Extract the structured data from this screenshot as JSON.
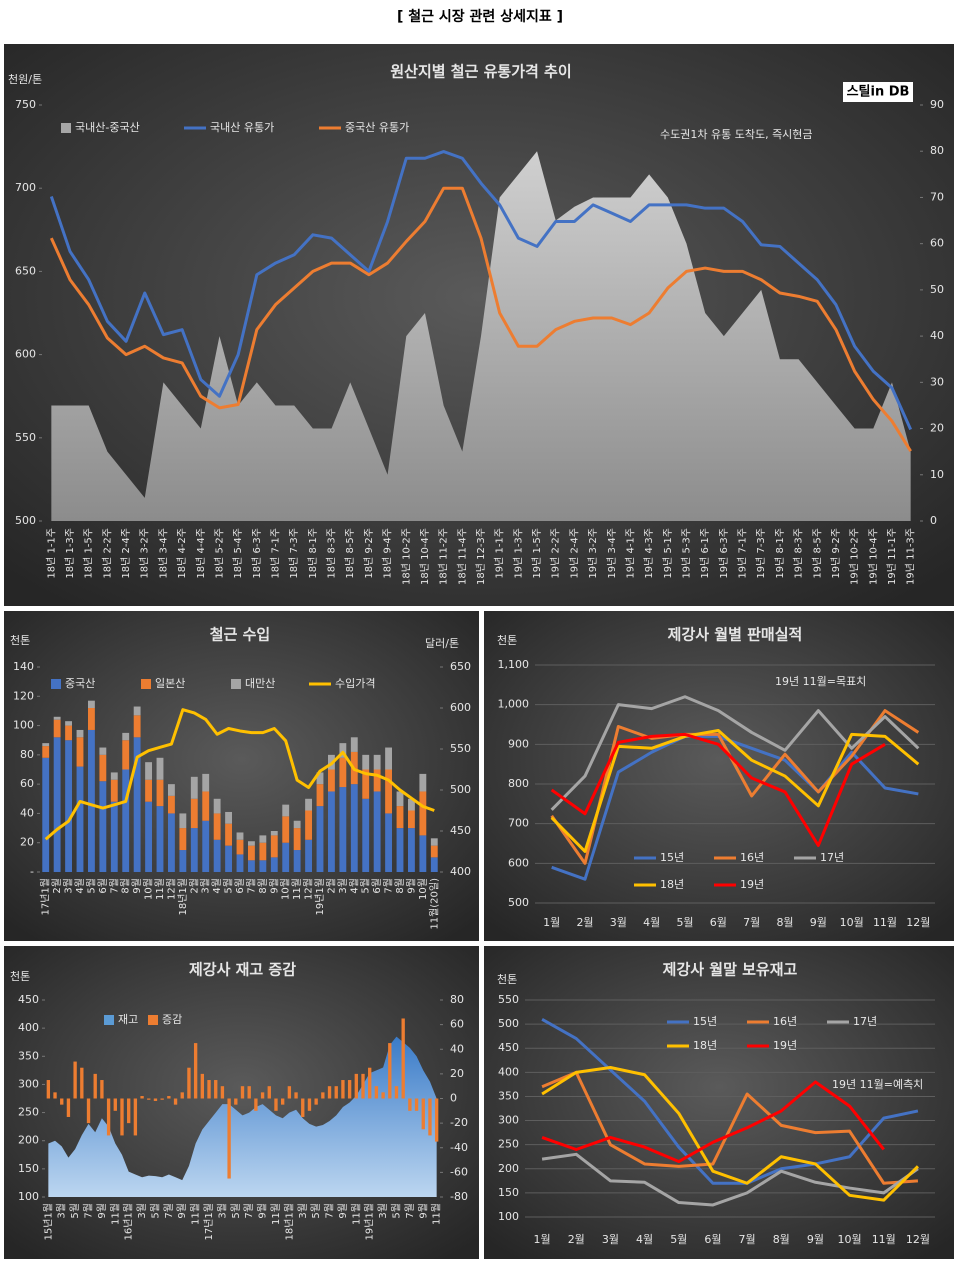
{
  "title": "[ 철근 시장 관련 상세지표 ]",
  "chart_data": [
    {
      "type": "combo",
      "title": "원산지별 철근 유통가격 추이",
      "y_unit": "천원/톤",
      "logo": "스틸in DB",
      "annotation": "수도권1차 유통 도착도, 즉시현금",
      "categories": [
        "18년 1-1주",
        "18년 1-3주",
        "18년 1-5주",
        "18년 2-2주",
        "18년 2-4주",
        "18년 3-2주",
        "18년 3-4주",
        "18년 4-2주",
        "18년 4-4주",
        "18년 5-2주",
        "18년 5-4주",
        "18년 6-3주",
        "18년 7-1주",
        "18년 7-3주",
        "18년 8-1주",
        "18년 8-3주",
        "18년 8-5주",
        "18년 9-2주",
        "18년 9-4주",
        "18년 10-2주",
        "18년 10-4주",
        "18년 11-2주",
        "18년 11-4주",
        "18년 12-3주",
        "19년 1-1주",
        "19년 1-3주",
        "19년 1-5주",
        "19년 2-2주",
        "19년 2-4주",
        "19년 3-2주",
        "19년 3-4주",
        "19년 4-1주",
        "19년 4-3주",
        "19년 5-1주",
        "19년 5-3주",
        "19년 6-1주",
        "19년 6-3주",
        "19년 7-1주",
        "19년 7-3주",
        "19년 8-1주",
        "19년 8-3주",
        "19년 8-5주",
        "19년 9-2주",
        "19년 10-2주",
        "19년 10-4주",
        "19년 11-1주",
        "19년 11-3주"
      ],
      "ylim": [
        500,
        750
      ],
      "yticks": [
        500,
        550,
        600,
        650,
        700,
        750
      ],
      "y2lim": [
        0,
        90
      ],
      "y2ticks": [
        0,
        10,
        20,
        30,
        40,
        50,
        60,
        70,
        80,
        90
      ],
      "grid": false,
      "series": [
        {
          "name": "국내산-중국산",
          "type": "area",
          "axis": "y2",
          "color": "#a6a6a6",
          "values": [
            25,
            25,
            25,
            15,
            10,
            5,
            30,
            25,
            20,
            40,
            25,
            30,
            25,
            25,
            20,
            20,
            30,
            20,
            10,
            40,
            45,
            25,
            15,
            40,
            70,
            75,
            80,
            65,
            68,
            70,
            70,
            70,
            75,
            70,
            60,
            45,
            40,
            45,
            50,
            35,
            35,
            30,
            25,
            20,
            20,
            30,
            15
          ]
        },
        {
          "name": "국내산 유통가",
          "type": "line",
          "color": "#4472c4",
          "values": [
            695,
            662,
            645,
            620,
            608,
            637,
            612,
            615,
            585,
            575,
            600,
            648,
            655,
            660,
            672,
            670,
            660,
            650,
            680,
            718,
            718,
            722,
            718,
            703,
            690,
            670,
            665,
            680,
            680,
            690,
            685,
            680,
            690,
            690,
            690,
            688,
            688,
            680,
            666,
            665,
            655,
            645,
            630,
            605,
            590,
            580,
            555
          ]
        },
        {
          "name": "중국산 유통가",
          "type": "line",
          "color": "#ed7d31",
          "values": [
            670,
            645,
            630,
            610,
            600,
            605,
            598,
            595,
            575,
            568,
            570,
            615,
            630,
            640,
            650,
            655,
            655,
            648,
            655,
            668,
            680,
            700,
            700,
            670,
            625,
            605,
            605,
            615,
            620,
            622,
            622,
            618,
            625,
            640,
            650,
            652,
            650,
            650,
            645,
            637,
            635,
            632,
            615,
            590,
            573,
            560,
            542
          ]
        }
      ]
    },
    {
      "type": "combo",
      "title": "철근 수입",
      "y_unit": "천톤",
      "y2_unit": "달러/톤",
      "stacked": true,
      "categories": [
        "17년1월",
        "2월",
        "3월",
        "4월",
        "5월",
        "6월",
        "7월",
        "8월",
        "9월",
        "10월",
        "11월",
        "12월",
        "18년1월",
        "2월",
        "3월",
        "4월",
        "5월",
        "6월",
        "7월",
        "8월",
        "9월",
        "10월",
        "11월",
        "12월",
        "19년1월",
        "2월",
        "3월",
        "4월",
        "5월",
        "6월",
        "7월",
        "8월",
        "9월",
        "10월",
        "11월(20일)"
      ],
      "ylim": [
        0,
        140
      ],
      "yticks": [
        {
          "value": 0,
          "label": "-"
        },
        20,
        40,
        60,
        80,
        100,
        120,
        140
      ],
      "y2lim": [
        400,
        650
      ],
      "y2ticks": [
        400,
        450,
        500,
        550,
        600,
        650
      ],
      "grid": false,
      "series": [
        {
          "name": "중국산",
          "type": "bar",
          "color": "#4472c4",
          "values": [
            78,
            92,
            90,
            72,
            97,
            62,
            48,
            70,
            92,
            48,
            45,
            40,
            15,
            30,
            35,
            22,
            18,
            12,
            8,
            8,
            10,
            20,
            15,
            22,
            45,
            55,
            58,
            60,
            50,
            55,
            40,
            30,
            30,
            25,
            10
          ]
        },
        {
          "name": "일본산",
          "type": "bar",
          "color": "#ed7d31",
          "values": [
            8,
            12,
            10,
            20,
            15,
            18,
            15,
            20,
            15,
            15,
            18,
            12,
            15,
            20,
            20,
            18,
            15,
            10,
            10,
            12,
            15,
            18,
            15,
            20,
            15,
            15,
            20,
            22,
            20,
            15,
            30,
            15,
            12,
            30,
            8
          ]
        },
        {
          "name": "대만산",
          "type": "bar",
          "color": "#a5a5a5",
          "values": [
            2,
            2,
            3,
            5,
            5,
            5,
            5,
            5,
            6,
            12,
            15,
            8,
            10,
            15,
            12,
            10,
            8,
            5,
            3,
            5,
            3,
            8,
            5,
            8,
            8,
            10,
            10,
            10,
            10,
            10,
            15,
            10,
            8,
            12,
            5
          ]
        },
        {
          "name": "수입가격",
          "type": "line",
          "axis": "y2",
          "color": "#ffc000",
          "values": [
            440,
            452,
            462,
            486,
            482,
            478,
            482,
            486,
            540,
            548,
            552,
            556,
            598,
            594,
            586,
            568,
            575,
            572,
            570,
            570,
            575,
            560,
            512,
            503,
            523,
            532,
            546,
            525,
            520,
            518,
            512,
            500,
            490,
            480,
            475
          ]
        }
      ]
    },
    {
      "type": "line",
      "title": "제강사 월별 판매실적",
      "y_unit": "천톤",
      "annotation": "19년 11월=목표치",
      "categories": [
        "1월",
        "2월",
        "3월",
        "4월",
        "5월",
        "6월",
        "7월",
        "8월",
        "9월",
        "10월",
        "11월",
        "12월"
      ],
      "ylim": [
        500,
        1100
      ],
      "yticks": [
        500,
        600,
        700,
        800,
        900,
        {
          "value": 1000,
          "label": "1,000"
        },
        {
          "value": 1100,
          "label": "1,100"
        }
      ],
      "grid": true,
      "series": [
        {
          "name": "15년",
          "color": "#4472c4",
          "values": [
            590,
            560,
            830,
            880,
            920,
            920,
            890,
            860,
            780,
            880,
            790,
            775
          ]
        },
        {
          "name": "16년",
          "color": "#ed7d31",
          "values": [
            720,
            600,
            945,
            915,
            925,
            925,
            770,
            875,
            780,
            870,
            985,
            930
          ]
        },
        {
          "name": "17년",
          "color": "#a5a5a5",
          "values": [
            735,
            820,
            1000,
            990,
            1020,
            985,
            930,
            885,
            985,
            890,
            970,
            890
          ]
        },
        {
          "name": "18년",
          "color": "#ffc000",
          "values": [
            715,
            630,
            895,
            890,
            920,
            935,
            860,
            820,
            745,
            925,
            920,
            850
          ]
        },
        {
          "name": "19년",
          "color": "#ff0000",
          "values": [
            785,
            725,
            905,
            920,
            925,
            900,
            815,
            780,
            645,
            850,
            900,
            null
          ]
        }
      ]
    },
    {
      "type": "combo",
      "title": "제강사 재고 증감",
      "y_unit": "천톤",
      "categories": [
        "15년1월",
        null,
        "3월",
        null,
        "5월",
        null,
        "7월",
        null,
        "9월",
        null,
        "11월",
        null,
        "16년1월",
        null,
        "3월",
        null,
        "5월",
        null,
        "7월",
        null,
        "9월",
        null,
        "11월",
        null,
        "17년1월",
        null,
        "3월",
        null,
        "5월",
        null,
        "7월",
        null,
        "9월",
        null,
        "11월",
        null,
        "18년1월",
        null,
        "3월",
        null,
        "5월",
        null,
        "7월",
        null,
        "9월",
        null,
        "11월",
        null,
        "19년1월",
        null,
        "3월",
        null,
        "5월",
        null,
        "7월",
        null,
        "9월",
        null,
        "11월"
      ],
      "ylim": [
        100,
        450
      ],
      "yticks": [
        100,
        150,
        200,
        250,
        300,
        350,
        400,
        450
      ],
      "y2lim": [
        -80,
        80
      ],
      "y2ticks": [
        -80,
        -60,
        -40,
        -20,
        0,
        20,
        40,
        60,
        80
      ],
      "grid": false,
      "series": [
        {
          "name": "재고",
          "type": "area",
          "color": "#5b9bd5",
          "values": [
            195,
            200,
            190,
            170,
            185,
            210,
            230,
            215,
            240,
            225,
            195,
            175,
            145,
            140,
            135,
            138,
            137,
            135,
            140,
            135,
            130,
            155,
            195,
            220,
            235,
            250,
            265,
            265,
            255,
            245,
            250,
            260,
            265,
            255,
            245,
            240,
            250,
            255,
            240,
            230,
            225,
            228,
            235,
            245,
            260,
            268,
            280,
            300,
            320,
            325,
            330,
            370,
            385,
            375,
            365,
            350,
            325,
            305,
            275
          ]
        },
        {
          "name": "증감",
          "type": "bar",
          "axis": "y2",
          "color": "#ed7d31",
          "values": [
            15,
            5,
            -5,
            -15,
            30,
            25,
            -20,
            20,
            15,
            -30,
            -10,
            -30,
            -20,
            -30,
            2,
            -1,
            -2,
            -1,
            2,
            -5,
            5,
            25,
            45,
            20,
            15,
            15,
            10,
            -65,
            -5,
            10,
            10,
            -10,
            5,
            10,
            -10,
            -5,
            10,
            5,
            -15,
            -10,
            -5,
            5,
            10,
            10,
            15,
            15,
            20,
            20,
            25,
            10,
            5,
            45,
            10,
            65,
            -10,
            -10,
            -25,
            -30,
            -35
          ]
        }
      ]
    },
    {
      "type": "line",
      "title": "제강사 월말 보유재고",
      "y_unit": "천톤",
      "annotation": "19년 11월=예측치",
      "categories": [
        "1월",
        "2월",
        "3월",
        "4월",
        "5월",
        "6월",
        "7월",
        "8월",
        "9월",
        "10월",
        "11월",
        "12월"
      ],
      "ylim": [
        100,
        550
      ],
      "yticks": [
        100,
        150,
        200,
        250,
        300,
        350,
        400,
        450,
        500,
        550
      ],
      "grid": true,
      "series": [
        {
          "name": "15년",
          "color": "#4472c4",
          "values": [
            510,
            470,
            405,
            340,
            245,
            170,
            170,
            200,
            210,
            225,
            305,
            320
          ]
        },
        {
          "name": "16년",
          "color": "#ed7d31",
          "values": [
            370,
            400,
            250,
            210,
            205,
            210,
            355,
            290,
            275,
            278,
            170,
            175
          ]
        },
        {
          "name": "17년",
          "color": "#a5a5a5",
          "values": [
            220,
            230,
            175,
            172,
            130,
            125,
            150,
            195,
            172,
            160,
            150,
            200
          ]
        },
        {
          "name": "18년",
          "color": "#ffc000",
          "values": [
            355,
            400,
            410,
            395,
            315,
            195,
            170,
            225,
            210,
            145,
            135,
            205
          ]
        },
        {
          "name": "19년",
          "color": "#ff0000",
          "values": [
            265,
            240,
            265,
            245,
            215,
            255,
            285,
            320,
            380,
            330,
            240,
            null
          ]
        }
      ]
    }
  ]
}
